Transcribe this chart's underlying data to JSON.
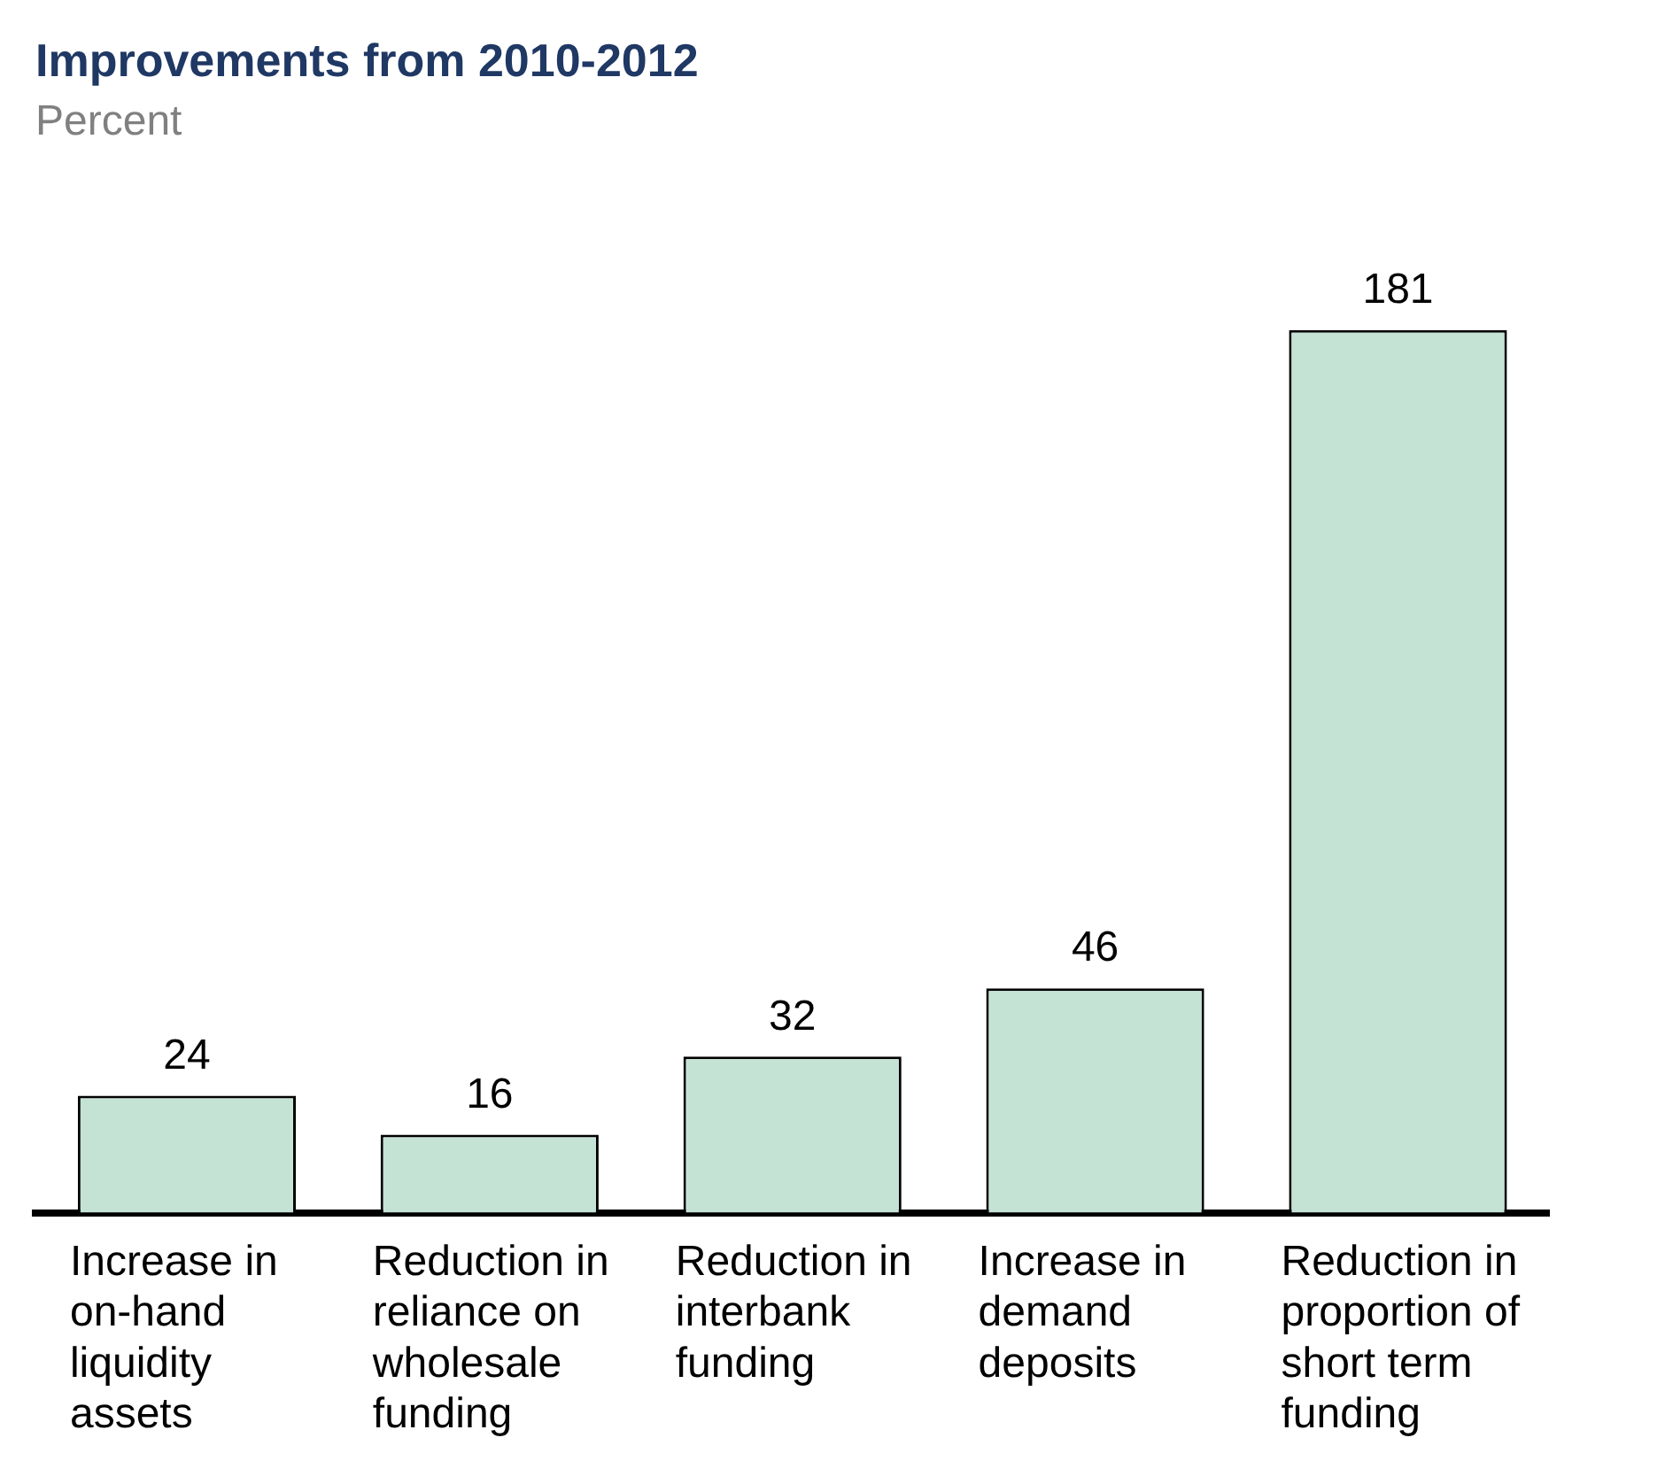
{
  "chart_data": {
    "type": "bar",
    "title": "Improvements from 2010-2012",
    "subtitle": "Percent",
    "categories": [
      "Increase in on-hand liquidity assets",
      "Reduction in reliance on wholesale funding",
      "Reduction in interbank funding",
      "Increase in demand deposits",
      "Reduction in proportion of short term funding"
    ],
    "values": [
      24,
      16,
      32,
      46,
      181
    ],
    "color": "#c5e3d5",
    "data_labels": true,
    "grid": false,
    "legend": false
  }
}
